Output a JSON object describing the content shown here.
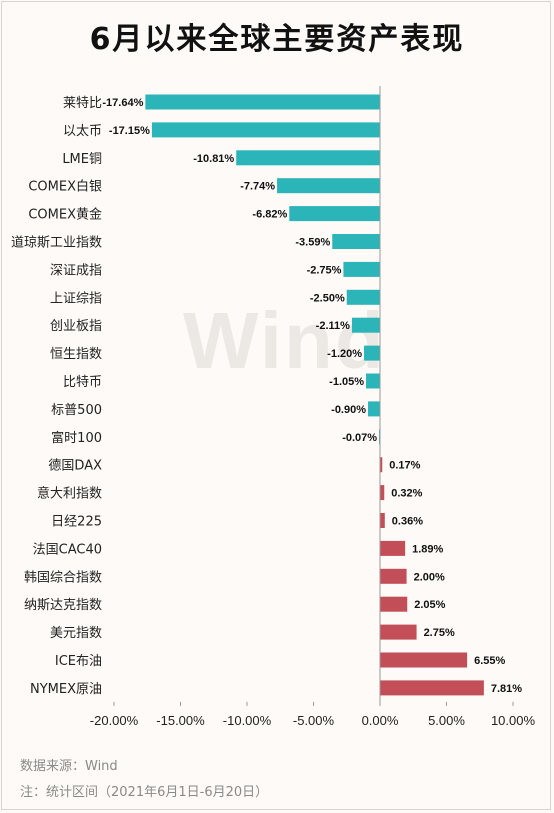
{
  "title": "6月以来全球主要资产表现",
  "watermark": "Wind",
  "source": "数据来源：Wind",
  "note": "注：统计区间（2021年6月1日-6月20日）",
  "colors": {
    "negative": "#2bb5b8",
    "positive": "#c24f57",
    "axis": "#999999"
  },
  "chart_data": {
    "type": "bar",
    "orientation": "horizontal",
    "categories": [
      "莱特比",
      "以太币",
      "LME铜",
      "COMEX白银",
      "COMEX黄金",
      "道琼斯工业指数",
      "深证成指",
      "上证综指",
      "创业板指",
      "恒生指数",
      "比特币",
      "标普500",
      "富时100",
      "德国DAX",
      "意大利指数",
      "日经225",
      "法国CAC40",
      "韩国综合指数",
      "纳斯达克指数",
      "美元指数",
      "ICE布油",
      "NYMEX原油"
    ],
    "values": [
      -17.64,
      -17.15,
      -10.81,
      -7.74,
      -6.82,
      -3.59,
      -2.75,
      -2.5,
      -2.11,
      -1.2,
      -1.05,
      -0.9,
      -0.07,
      0.17,
      0.32,
      0.36,
      1.89,
      2.0,
      2.05,
      2.75,
      6.55,
      7.81
    ],
    "value_labels": [
      "-17.64%",
      "-17.15%",
      "-10.81%",
      "-7.74%",
      "-6.82%",
      "-3.59%",
      "-2.75%",
      "-2.50%",
      "-2.11%",
      "-1.20%",
      "-1.05%",
      "-0.90%",
      "-0.07%",
      "0.17%",
      "0.32%",
      "0.36%",
      "1.89%",
      "2.00%",
      "2.05%",
      "2.75%",
      "6.55%",
      "7.81%"
    ],
    "xlim": [
      -20,
      10
    ],
    "xticks": [
      -20,
      -15,
      -10,
      -5,
      0,
      5,
      10
    ],
    "xtick_labels": [
      "-20.00%",
      "-15.00%",
      "-10.00%",
      "-5.00%",
      "0.00%",
      "5.00%",
      "10.00%"
    ],
    "xlabel": "",
    "ylabel": "",
    "grid": false,
    "legend": "none"
  }
}
